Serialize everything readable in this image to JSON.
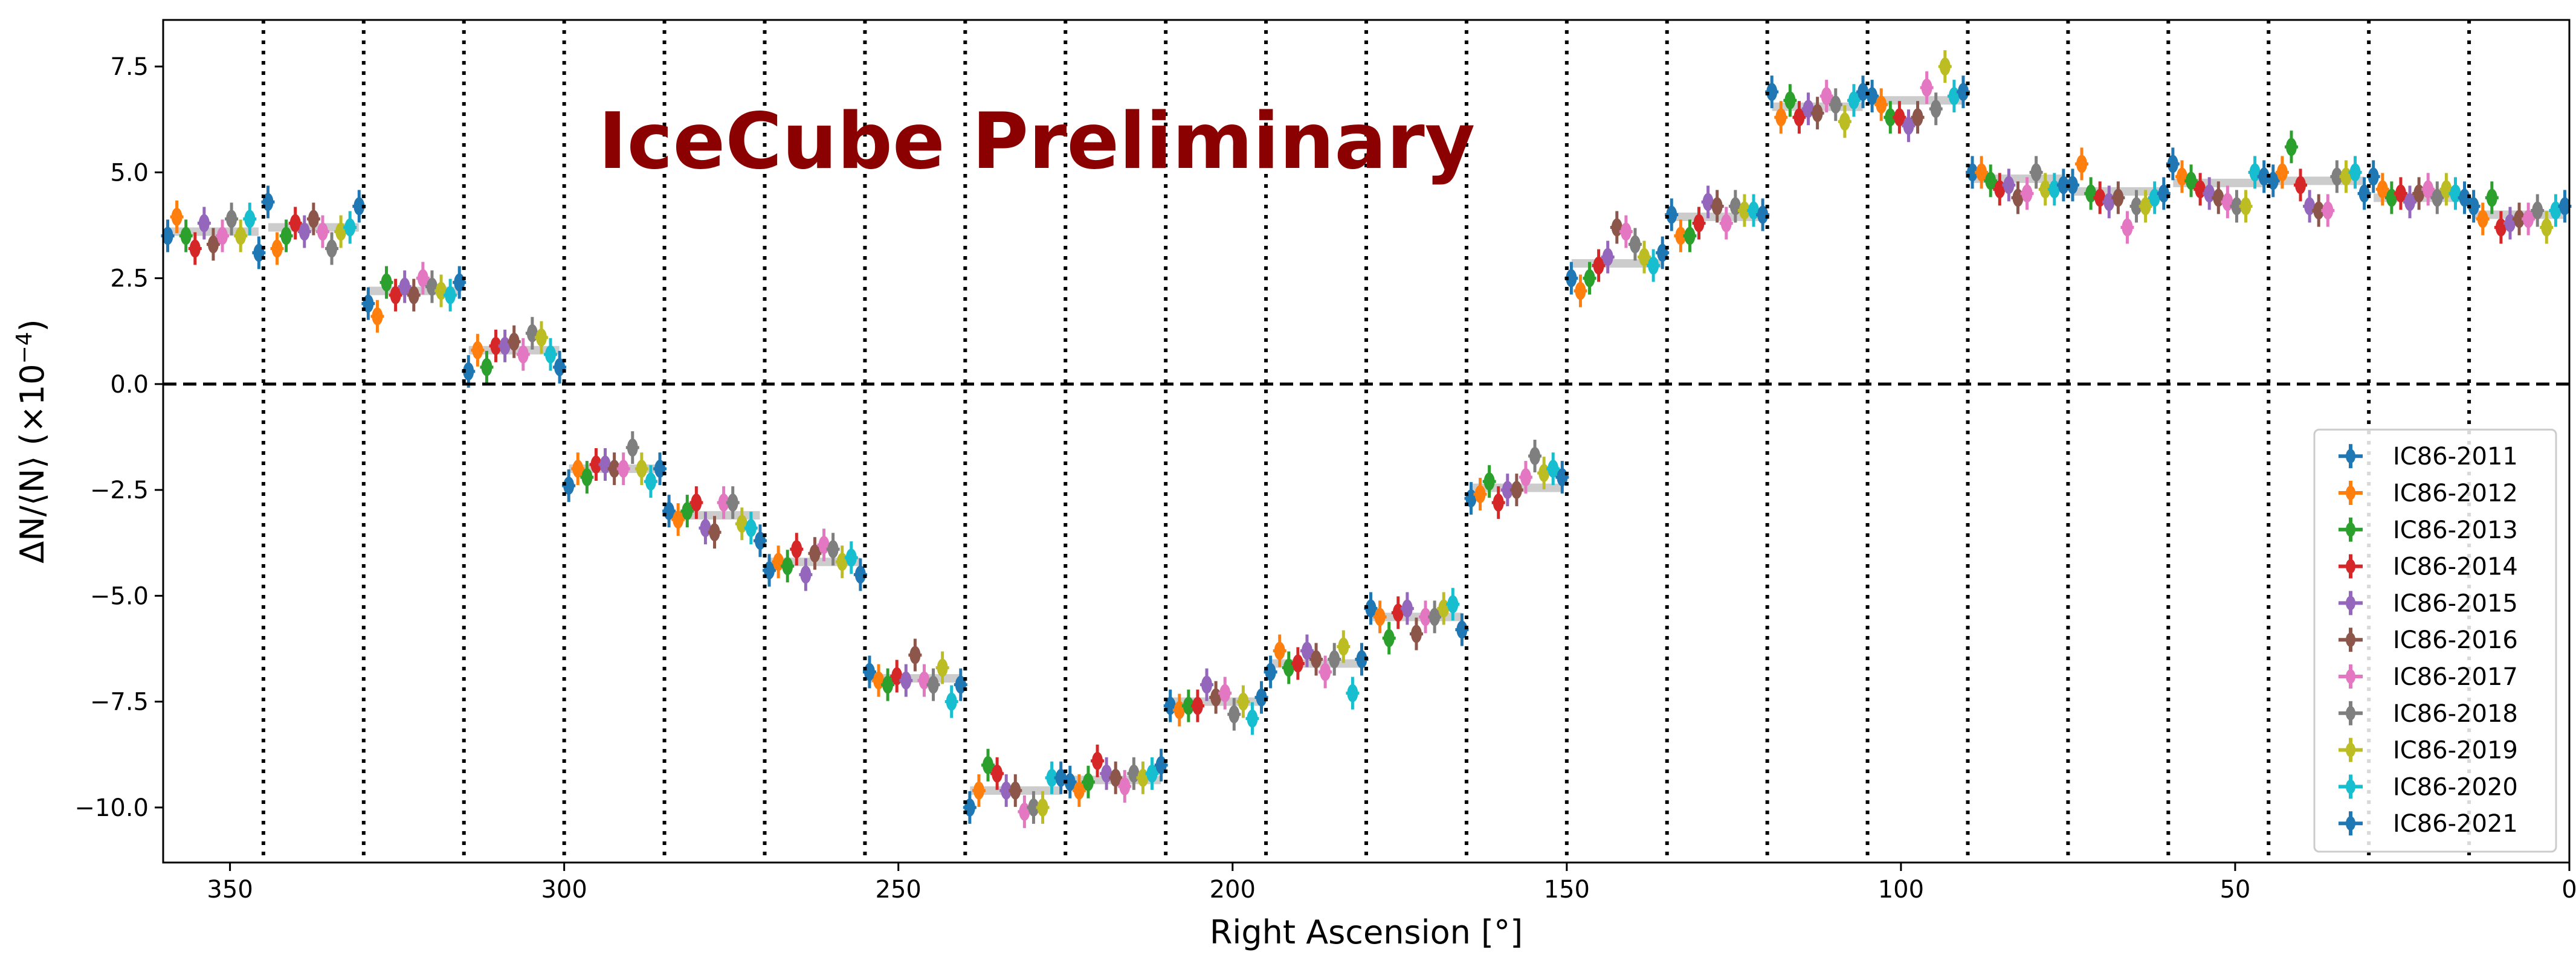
{
  "chart_data": {
    "type": "scatter",
    "xlabel": "Right Ascension [°]",
    "ylabel": "ΔN/⟨N⟩ (×10",
    "ylabel_exponent": "−4",
    "ylabel_close": ")",
    "xlim": [
      360,
      0
    ],
    "ylim": [
      -11.3,
      8.6
    ],
    "xticks": [
      {
        "v": 350,
        "label": "350"
      },
      {
        "v": 300,
        "label": "300"
      },
      {
        "v": 250,
        "label": "250"
      },
      {
        "v": 200,
        "label": "200"
      },
      {
        "v": 150,
        "label": "150"
      },
      {
        "v": 100,
        "label": "100"
      },
      {
        "v": 50,
        "label": "50"
      },
      {
        "v": 0,
        "label": "0"
      }
    ],
    "yticks": [
      {
        "v": 7.5,
        "label": "7.5"
      },
      {
        "v": 5.0,
        "label": "5.0"
      },
      {
        "v": 2.5,
        "label": "2.5"
      },
      {
        "v": 0.0,
        "label": "0.0"
      },
      {
        "v": -2.5,
        "label": "−2.5"
      },
      {
        "v": -5.0,
        "label": "−5.0"
      },
      {
        "v": -7.5,
        "label": "−7.5"
      },
      {
        "v": -10.0,
        "label": "−10.0"
      }
    ],
    "annotation": "IceCube Preliminary",
    "legend_position": "lower right",
    "grid": false,
    "bin_edges": [
      360,
      345,
      330,
      315,
      300,
      285,
      270,
      255,
      240,
      225,
      210,
      195,
      180,
      165,
      150,
      135,
      120,
      105,
      90,
      75,
      60,
      45,
      30,
      15,
      0
    ],
    "bin_means": [
      3.6,
      3.7,
      2.2,
      0.8,
      -2.0,
      -3.1,
      -4.2,
      -6.95,
      -9.6,
      -9.35,
      -7.5,
      -6.6,
      -5.5,
      -2.45,
      2.85,
      3.95,
      6.55,
      6.7,
      4.85,
      4.55,
      4.75,
      4.8,
      4.4,
      4.0
    ],
    "series": [
      {
        "name": "IC86-2011",
        "color": "#1f77b4",
        "values": [
          3.5,
          4.3,
          1.9,
          0.3,
          -2.4,
          -3.0,
          -4.4,
          -6.8,
          -10.0,
          -9.4,
          -7.6,
          -6.8,
          -5.3,
          -2.7,
          2.5,
          4.0,
          6.9,
          6.8,
          5.0,
          4.7,
          5.2,
          4.8,
          4.9,
          4.2
        ]
      },
      {
        "name": "IC86-2012",
        "color": "#ff7f0e",
        "values": [
          3.95,
          3.2,
          1.6,
          0.8,
          -2.0,
          -3.2,
          -4.2,
          -7.0,
          -9.6,
          -9.6,
          -7.7,
          -6.3,
          -5.5,
          -2.6,
          2.2,
          3.5,
          6.3,
          6.6,
          5.0,
          5.2,
          4.9,
          5.0,
          4.6,
          3.9
        ]
      },
      {
        "name": "IC86-2013",
        "color": "#2ca02c",
        "values": [
          3.5,
          3.5,
          2.4,
          0.4,
          -2.2,
          -3.0,
          -4.3,
          -7.1,
          -9.0,
          -9.4,
          -7.6,
          -6.7,
          -6.0,
          -2.3,
          2.5,
          3.5,
          6.7,
          6.3,
          4.8,
          4.5,
          4.8,
          5.6,
          4.4,
          4.4
        ]
      },
      {
        "name": "IC86-2014",
        "color": "#d62728",
        "values": [
          3.2,
          3.8,
          2.1,
          0.9,
          -1.9,
          -2.8,
          -3.9,
          -6.9,
          -9.2,
          -8.9,
          -7.6,
          -6.6,
          -5.4,
          -2.8,
          2.8,
          3.8,
          6.3,
          6.3,
          4.6,
          4.4,
          4.6,
          4.7,
          4.5,
          3.7
        ]
      },
      {
        "name": "IC86-2015",
        "color": "#9467bd",
        "values": [
          3.8,
          3.6,
          2.3,
          0.9,
          -1.9,
          -3.4,
          -4.5,
          -7.0,
          -9.6,
          -9.2,
          -7.1,
          -6.3,
          -5.3,
          -2.5,
          3.0,
          4.3,
          6.5,
          6.1,
          4.7,
          4.3,
          4.5,
          4.2,
          4.3,
          3.8
        ]
      },
      {
        "name": "IC86-2016",
        "color": "#8c564b",
        "values": [
          3.3,
          3.9,
          2.1,
          1.0,
          -2.0,
          -3.5,
          -4.0,
          -6.4,
          -9.6,
          -9.3,
          -7.4,
          -6.5,
          -5.9,
          -2.5,
          3.7,
          4.2,
          6.4,
          6.3,
          4.4,
          4.4,
          4.4,
          4.1,
          4.5,
          3.9
        ]
      },
      {
        "name": "IC86-2017",
        "color": "#e377c2",
        "values": [
          3.5,
          3.6,
          2.5,
          0.7,
          -2.0,
          -2.8,
          -3.8,
          -7.0,
          -10.1,
          -9.5,
          -7.3,
          -6.8,
          -5.5,
          -2.2,
          3.6,
          3.8,
          6.8,
          7.0,
          4.5,
          3.7,
          4.3,
          4.1,
          4.6,
          3.9
        ]
      },
      {
        "name": "IC86-2018",
        "color": "#7f7f7f",
        "values": [
          3.9,
          3.2,
          2.3,
          1.2,
          -1.5,
          -2.8,
          -3.9,
          -7.1,
          -10.0,
          -9.2,
          -7.8,
          -6.5,
          -5.5,
          -1.7,
          3.3,
          4.2,
          6.6,
          6.5,
          5.0,
          4.2,
          4.2,
          4.9,
          4.4,
          4.1
        ]
      },
      {
        "name": "IC86-2019",
        "color": "#bcbd22",
        "values": [
          3.5,
          3.6,
          2.2,
          1.1,
          -2.0,
          -3.3,
          -4.2,
          -6.7,
          -10.0,
          -9.3,
          -7.5,
          -6.2,
          -5.3,
          -2.1,
          3.0,
          4.1,
          6.2,
          7.5,
          4.6,
          4.2,
          4.2,
          4.9,
          4.6,
          3.7
        ]
      },
      {
        "name": "IC86-2020",
        "color": "#17becf",
        "values": [
          3.9,
          3.7,
          2.1,
          0.7,
          -2.3,
          -3.4,
          -4.1,
          -7.5,
          -9.3,
          -9.2,
          -7.9,
          -7.3,
          -5.2,
          -2.0,
          2.8,
          4.1,
          6.7,
          6.8,
          4.6,
          4.4,
          5.0,
          5.0,
          4.5,
          4.1
        ]
      },
      {
        "name": "IC86-2021",
        "color": "#1f77b4",
        "values": [
          3.1,
          4.2,
          2.4,
          0.4,
          -2.0,
          -3.7,
          -4.5,
          -7.1,
          -9.3,
          -9.0,
          -7.4,
          -6.5,
          -5.8,
          -2.2,
          3.1,
          4.0,
          6.9,
          6.9,
          4.7,
          4.5,
          4.9,
          4.5,
          4.4,
          4.2
        ]
      }
    ]
  }
}
